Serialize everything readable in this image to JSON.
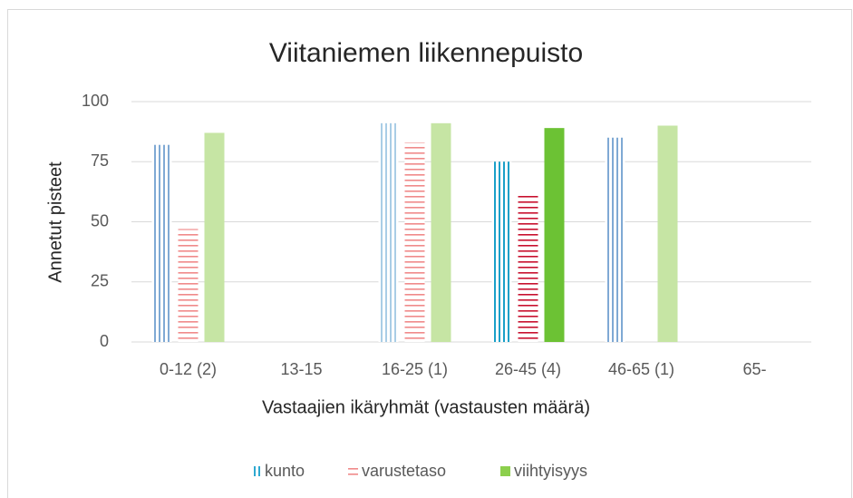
{
  "chart_data": {
    "type": "bar",
    "title": "Viitaniemen liikennepuisto",
    "x_label": "Vastaajien ikäryhmät (vastausten määrä)",
    "y_label": "Annetut pisteet",
    "categories": [
      "0-12 (2)",
      "13-15",
      "16-25 (1)",
      "26-45 (4)",
      "46-65 (1)",
      "65-"
    ],
    "series": [
      {
        "name": "kunto",
        "pattern": "vertical",
        "color": "#2ea8d0",
        "colors": [
          "#7fa9d4",
          null,
          "#a9cde6",
          "#1aa0c8",
          "#7fa9d4",
          null
        ],
        "values": [
          82,
          null,
          91,
          75,
          85,
          null
        ]
      },
      {
        "name": "varustetaso",
        "pattern": "horizontal",
        "color": "#f08a8a",
        "colors": [
          "#f08a8a",
          null,
          "#f08a8a",
          "#c8102e",
          null,
          null
        ],
        "values": [
          47,
          null,
          83,
          61,
          null,
          null
        ]
      },
      {
        "name": "viihtyisyys",
        "pattern": "solid",
        "color": "#8ccf4d",
        "colors": [
          "#c6e5a4",
          null,
          "#c6e5a4",
          "#6cc234",
          "#c6e5a4",
          null
        ],
        "values": [
          87,
          null,
          91,
          89,
          90,
          null
        ]
      }
    ],
    "ylim": [
      0,
      100
    ],
    "yticks": [
      0,
      25,
      50,
      75,
      100
    ],
    "grid": true,
    "legend": "bottom"
  }
}
